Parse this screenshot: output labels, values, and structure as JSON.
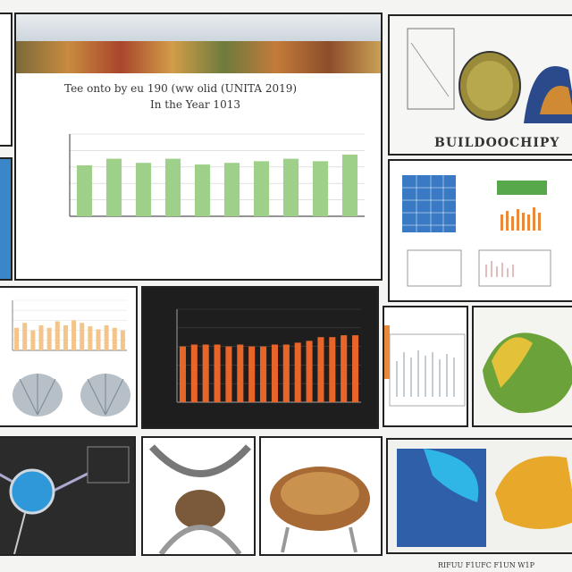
{
  "top_caption": "",
  "main_chart": {
    "title_line1": "Tee onto by eu 190 (ww olid (UNITA 2019)",
    "title_line2": "In the Year 1013",
    "xlabel": "",
    "bar_color": "#9fd08a",
    "chart_data": {
      "type": "bar",
      "categories": [
        "",
        "",
        "",
        "",
        "",
        "",
        "",
        "",
        "",
        ""
      ],
      "values": [
        62,
        70,
        65,
        70,
        63,
        65,
        67,
        70,
        67,
        75
      ],
      "ylim": [
        0,
        100
      ],
      "grid": true
    }
  },
  "dark_chart": {
    "title": "",
    "bar_color": "#e8652a",
    "chart_data": {
      "type": "bar",
      "values": [
        60,
        62,
        62,
        62,
        60,
        62,
        60,
        60,
        62,
        62,
        64,
        66,
        70,
        70,
        72,
        72
      ],
      "ylim": [
        0,
        100
      ],
      "grid": true
    }
  },
  "small_chart": {
    "bar_color": "#f3c58a",
    "chart_data": {
      "type": "bar",
      "values": [
        45,
        55,
        40,
        50,
        45,
        58,
        50,
        60,
        55,
        48,
        42,
        50,
        45,
        40
      ],
      "ylim": [
        0,
        100
      ]
    }
  },
  "anatomy_caption": "BUILDOOCHIPY",
  "right_mid_caption": "",
  "footer_text": "RIFUU  F1UFC  F1UN  W1P"
}
